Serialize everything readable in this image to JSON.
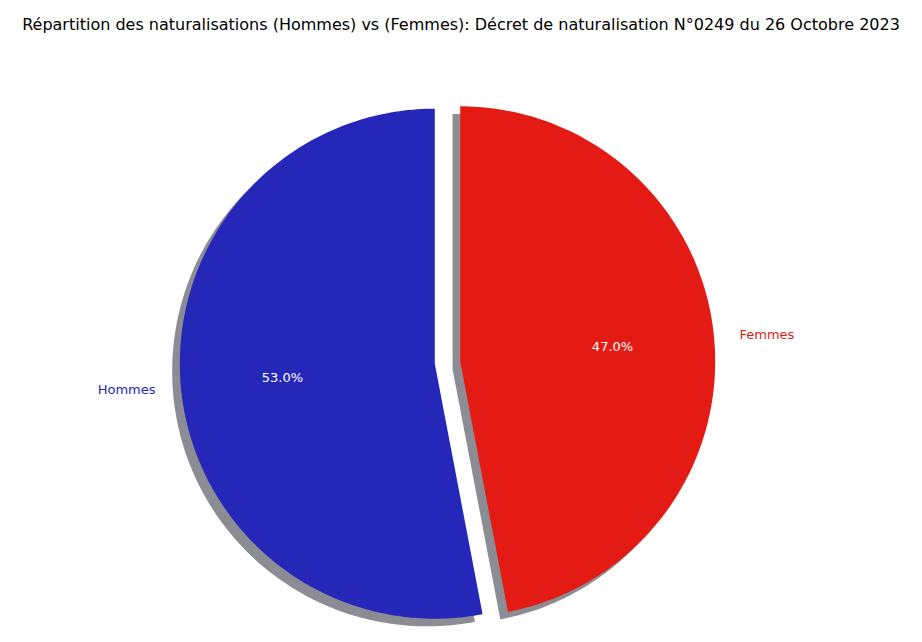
{
  "chart_data": {
    "type": "pie",
    "title": "Répartition des naturalisations (Hommes) vs (Femmes): Décret de naturalisation N°0249 du 26 Octobre 2023",
    "categories": [
      "Hommes",
      "Femmes"
    ],
    "values": [
      53.0,
      47.0
    ],
    "colors": [
      "#2427b8",
      "#e31b14"
    ],
    "data_labels": true,
    "value_labels": [
      "53.0%",
      "47.0%"
    ]
  }
}
